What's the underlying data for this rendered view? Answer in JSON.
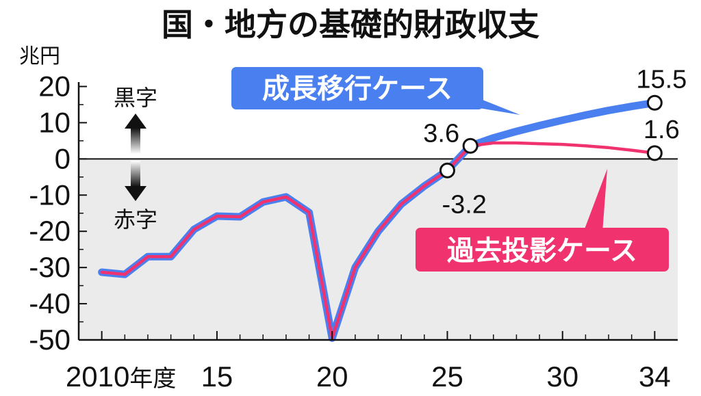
{
  "chart_data": {
    "type": "line",
    "title": "国・地方の基礎的財政収支",
    "ylabel": "兆円",
    "ylim": [
      -50,
      25
    ],
    "yticks": [
      "20",
      "10",
      "0",
      "-10",
      "-20",
      "-30",
      "-40",
      "-50"
    ],
    "xlim": [
      2009,
      2035
    ],
    "xtick_labels": [
      {
        "x": 2010,
        "label": "2010",
        "suffix": "年度"
      },
      {
        "x": 2015,
        "label": "15",
        "suffix": ""
      },
      {
        "x": 2020,
        "label": "20",
        "suffix": ""
      },
      {
        "x": 2025,
        "label": "25",
        "suffix": ""
      },
      {
        "x": 2030,
        "label": "30",
        "suffix": ""
      },
      {
        "x": 2034,
        "label": "34",
        "suffix": ""
      }
    ],
    "surplus_label": "黒字",
    "deficit_label": "赤字",
    "historical": {
      "x": [
        2010,
        2011,
        2012,
        2013,
        2014,
        2015,
        2016,
        2017,
        2018,
        2019,
        2020,
        2021,
        2022,
        2023,
        2024,
        2025,
        2026
      ],
      "values": [
        -31.3,
        -31.9,
        -27.0,
        -27.0,
        -19.5,
        -15.8,
        -16.0,
        -11.9,
        -10.5,
        -14.8,
        -49.5,
        -30.0,
        -20.0,
        -12.5,
        -7.5,
        -3.2,
        3.6
      ]
    },
    "series": [
      {
        "name": "成長移行ケース",
        "color": "#4a7ff0",
        "x": [
          2026,
          2027,
          2028,
          2029,
          2030,
          2031,
          2032,
          2033,
          2034
        ],
        "values": [
          3.6,
          5.8,
          7.6,
          9.2,
          10.7,
          12.1,
          13.4,
          14.5,
          15.5
        ]
      },
      {
        "name": "過去投影ケース",
        "color": "#f0326e",
        "x": [
          2026,
          2027,
          2028,
          2029,
          2030,
          2031,
          2032,
          2033,
          2034
        ],
        "values": [
          3.6,
          4.4,
          4.4,
          4.2,
          4.0,
          3.6,
          3.1,
          2.4,
          1.6
        ]
      }
    ],
    "annotations": [
      {
        "x": 2025,
        "y": -3.2,
        "label": "-3.2"
      },
      {
        "x": 2026,
        "y": 3.6,
        "label": "3.6"
      },
      {
        "x": 2034,
        "y": 15.5,
        "label": "15.5"
      },
      {
        "x": 2034,
        "y": 1.6,
        "label": "1.6"
      }
    ],
    "colors": {
      "blue": "#4a7ff0",
      "pink": "#f0326e",
      "deficit_band": "#ebebeb"
    }
  }
}
